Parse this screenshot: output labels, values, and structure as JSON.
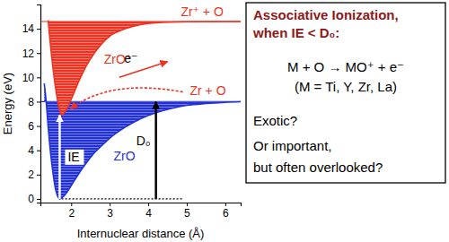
{
  "chart_data": {
    "type": "line",
    "x_label": "Internuclear distance (Å)",
    "y_label": "Energy (eV)",
    "xlim": [
      1.2,
      6.4
    ],
    "ylim": [
      -0.3,
      16
    ],
    "xticks": [
      2,
      3,
      4,
      5,
      6
    ],
    "yticks": [
      0,
      2,
      4,
      6,
      8,
      10,
      12,
      14
    ],
    "grid": false,
    "series": [
      {
        "name": "ZrO",
        "color": "#2331d8",
        "limit": 8.0,
        "limit_label": "Zr + O",
        "x": [
          1.3,
          1.35,
          1.4,
          1.45,
          1.5,
          1.55,
          1.6,
          1.65,
          1.7,
          1.8,
          1.9,
          2.0,
          2.2,
          2.4,
          2.6,
          2.8,
          3.0,
          3.4,
          3.8,
          4.2,
          4.6,
          5.0,
          5.5,
          6.0,
          6.4
        ],
        "values": [
          9.5,
          8.0,
          6.0,
          4.2,
          2.8,
          1.6,
          0.7,
          0.2,
          0.0,
          0.2,
          0.6,
          1.1,
          2.1,
          3.0,
          3.8,
          4.4,
          5.0,
          5.9,
          6.6,
          7.1,
          7.45,
          7.7,
          7.85,
          7.95,
          8.0
        ]
      },
      {
        "name": "ZrO⁺",
        "color": "#ee3322",
        "limit": 14.6,
        "limit_label": "Zr⁺ + O",
        "x": [
          1.4,
          1.5,
          1.6,
          1.7,
          1.75,
          1.85,
          2.0,
          2.2,
          2.4,
          2.6,
          2.8,
          3.0,
          3.4,
          3.8,
          4.2,
          5.0,
          6.4
        ],
        "values": [
          14.7,
          11.5,
          9.0,
          7.3,
          6.9,
          7.2,
          8.2,
          9.7,
          11.0,
          12.0,
          12.8,
          13.4,
          14.0,
          14.35,
          14.5,
          14.58,
          14.6
        ]
      }
    ],
    "annotations": [
      {
        "text": "IE",
        "x": 1.7,
        "y0": 0,
        "y1": 6.9
      },
      {
        "text": "D₀",
        "x": 4.2,
        "y0": 0,
        "y1": 8.0
      },
      {
        "text": "e⁻"
      }
    ],
    "text_box": {
      "title_lines": [
        "Associative Ionization,",
        "when IE < D₀:"
      ],
      "equation": "M + O → MO⁺ + e⁻",
      "note": "(M = Ti, Y, Zr, La)",
      "questions": [
        "Exotic?",
        "Or important,",
        "but often overlooked?"
      ]
    }
  }
}
